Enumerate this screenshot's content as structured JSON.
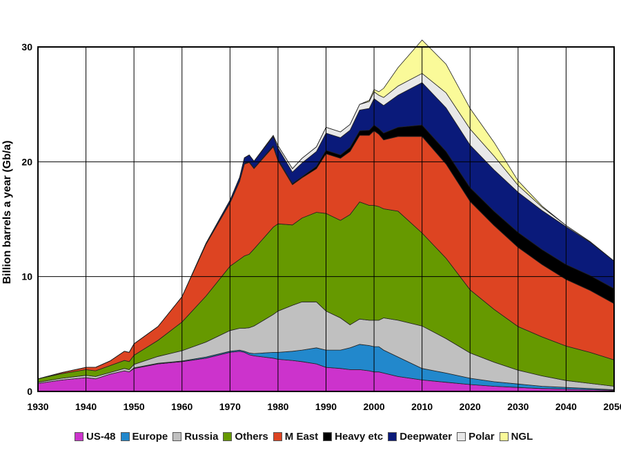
{
  "chart_data": {
    "type": "area",
    "stacked": true,
    "title": "",
    "xlabel": "",
    "ylabel": "Billion barrels a year (Gb/a)",
    "xlim": [
      1930,
      2050
    ],
    "ylim": [
      0,
      30
    ],
    "grid": true,
    "legend_position": "bottom",
    "x_ticks": [
      "1930",
      "1940",
      "1950",
      "1960",
      "1970",
      "1980",
      "1990",
      "2000",
      "2010",
      "2020",
      "2030",
      "2040",
      "2050"
    ],
    "y_ticks": [
      "0",
      "10",
      "20",
      "30"
    ],
    "x": [
      1930,
      1935,
      1940,
      1942,
      1945,
      1948,
      1949,
      1950,
      1955,
      1960,
      1965,
      1970,
      1972,
      1973,
      1974,
      1975,
      1979,
      1980,
      1983,
      1985,
      1988,
      1990,
      1993,
      1995,
      1997,
      1999,
      2000,
      2001,
      2002,
      2005,
      2010,
      2015,
      2020,
      2025,
      2030,
      2035,
      2040,
      2045,
      2050
    ],
    "series": [
      {
        "name": "US-48",
        "color": "#cc33cc",
        "values": [
          0.7,
          1.0,
          1.2,
          1.1,
          1.5,
          1.8,
          1.7,
          2.0,
          2.4,
          2.6,
          2.9,
          3.4,
          3.5,
          3.4,
          3.2,
          3.1,
          2.9,
          2.8,
          2.7,
          2.6,
          2.4,
          2.1,
          2.0,
          1.9,
          1.9,
          1.8,
          1.7,
          1.7,
          1.6,
          1.3,
          1.0,
          0.8,
          0.6,
          0.45,
          0.35,
          0.25,
          0.2,
          0.15,
          0.1
        ]
      },
      {
        "name": "Europe",
        "color": "#2288cc",
        "values": [
          0.0,
          0.0,
          0.0,
          0.0,
          0.0,
          0.0,
          0.0,
          0.05,
          0.05,
          0.05,
          0.1,
          0.1,
          0.1,
          0.1,
          0.15,
          0.2,
          0.5,
          0.6,
          0.8,
          1.0,
          1.4,
          1.5,
          1.6,
          1.9,
          2.2,
          2.2,
          2.2,
          2.2,
          2.0,
          1.7,
          1.0,
          0.8,
          0.55,
          0.4,
          0.3,
          0.2,
          0.15,
          0.1,
          0.05
        ]
      },
      {
        "name": "Russia",
        "color": "#c0c0c0",
        "values": [
          0.1,
          0.15,
          0.2,
          0.2,
          0.15,
          0.2,
          0.2,
          0.3,
          0.6,
          0.9,
          1.3,
          1.8,
          1.9,
          2.0,
          2.2,
          2.4,
          3.3,
          3.6,
          4.0,
          4.2,
          4.0,
          3.4,
          2.8,
          2.0,
          2.2,
          2.2,
          2.3,
          2.3,
          2.8,
          3.2,
          3.7,
          3.0,
          2.2,
          1.7,
          1.2,
          0.9,
          0.6,
          0.45,
          0.3
        ]
      },
      {
        "name": "Others",
        "color": "#669900",
        "values": [
          0.3,
          0.4,
          0.5,
          0.5,
          0.6,
          0.7,
          0.7,
          0.8,
          1.4,
          2.5,
          4.0,
          5.6,
          6.0,
          6.3,
          6.4,
          6.7,
          7.6,
          7.6,
          7.0,
          7.3,
          7.8,
          8.5,
          8.5,
          9.6,
          10.2,
          10.0,
          10.0,
          9.9,
          9.5,
          9.5,
          8.1,
          7.0,
          5.5,
          4.6,
          3.8,
          3.4,
          3.0,
          2.7,
          2.3
        ]
      },
      {
        "name": "M East",
        "color": "#dd4422",
        "values": [
          0.0,
          0.1,
          0.2,
          0.3,
          0.4,
          0.8,
          0.8,
          1.0,
          1.2,
          2.2,
          4.5,
          5.5,
          6.8,
          8.0,
          8.0,
          7.0,
          7.0,
          5.5,
          3.5,
          3.5,
          3.8,
          5.2,
          5.4,
          5.5,
          5.8,
          6.1,
          6.5,
          6.3,
          6.0,
          6.5,
          8.4,
          8.2,
          7.7,
          7.3,
          6.9,
          6.3,
          5.8,
          5.4,
          4.9
        ]
      },
      {
        "name": "Heavy etc",
        "color": "#000000",
        "values": [
          0.0,
          0.0,
          0.0,
          0.0,
          0.0,
          0.0,
          0.0,
          0.0,
          0.0,
          0.0,
          0.0,
          0.05,
          0.05,
          0.05,
          0.05,
          0.05,
          0.1,
          0.1,
          0.1,
          0.1,
          0.2,
          0.3,
          0.3,
          0.35,
          0.4,
          0.45,
          0.5,
          0.5,
          0.6,
          0.8,
          1.0,
          1.1,
          1.2,
          1.25,
          1.3,
          1.3,
          1.3,
          1.3,
          1.3
        ]
      },
      {
        "name": "Deepwater",
        "color": "#0a1a7a",
        "values": [
          0.0,
          0.0,
          0.0,
          0.0,
          0.0,
          0.0,
          0.0,
          0.0,
          0.0,
          0.0,
          0.1,
          0.2,
          0.3,
          0.5,
          0.6,
          0.6,
          0.8,
          1.0,
          1.0,
          1.2,
          1.3,
          1.5,
          1.5,
          1.5,
          1.8,
          1.9,
          2.3,
          2.3,
          2.4,
          2.8,
          3.7,
          3.8,
          3.7,
          3.6,
          3.5,
          3.4,
          3.3,
          2.9,
          2.4
        ]
      },
      {
        "name": "Polar",
        "color": "#e8e8e8",
        "values": [
          0.0,
          0.0,
          0.0,
          0.0,
          0.0,
          0.0,
          0.0,
          0.0,
          0.0,
          0.0,
          0.0,
          0.0,
          0.0,
          0.0,
          0.0,
          0.0,
          0.1,
          0.2,
          0.3,
          0.4,
          0.4,
          0.5,
          0.5,
          0.5,
          0.5,
          0.6,
          0.6,
          0.6,
          0.7,
          0.8,
          0.8,
          1.3,
          1.4,
          1.2,
          0.6,
          0.3,
          0.1,
          0.05,
          0.0
        ]
      },
      {
        "name": "NGL",
        "color": "#fafa99",
        "values": [
          0.0,
          0.0,
          0.0,
          0.0,
          0.0,
          0.0,
          0.0,
          0.0,
          0.0,
          0.0,
          0.0,
          0.0,
          0.0,
          0.0,
          0.0,
          0.0,
          0.0,
          0.0,
          0.0,
          0.0,
          0.0,
          0.0,
          0.0,
          0.0,
          0.0,
          0.1,
          0.2,
          0.3,
          0.8,
          1.6,
          2.9,
          2.5,
          1.8,
          1.2,
          0.4,
          0.1,
          0.0,
          0.0,
          0.0
        ]
      }
    ]
  }
}
